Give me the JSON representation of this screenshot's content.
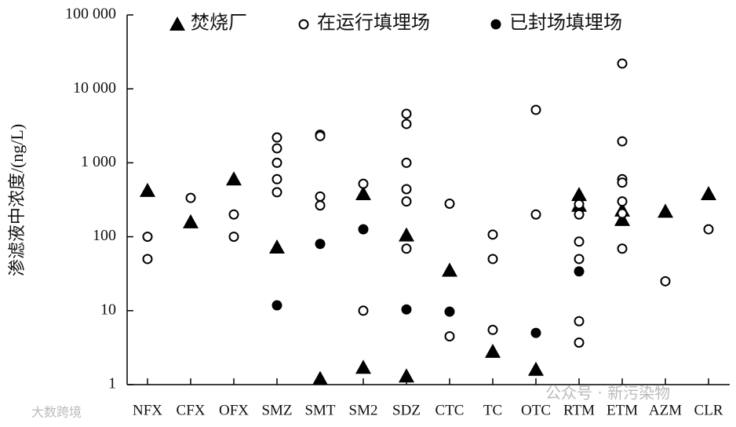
{
  "chart_data": {
    "type": "scatter",
    "y_label": "渗滤液中浓度/(ng/L)",
    "categories": [
      "NFX",
      "CFX",
      "OFX",
      "SMZ",
      "SMT",
      "SM2",
      "SDZ",
      "CTC",
      "TC",
      "OTC",
      "RTM",
      "ETM",
      "AZM",
      "CLR"
    ],
    "ylim": [
      1,
      100000
    ],
    "log_y": true,
    "yticks": [
      1,
      10,
      100,
      {
        "value": 1000,
        "label": "1 000"
      },
      {
        "value": 10000,
        "label": "10 000"
      },
      {
        "value": 100000,
        "label": "100 000"
      }
    ],
    "legend_position": "top",
    "series": [
      {
        "name": "焚烧厂",
        "marker": "triangle",
        "color": "#000000",
        "x": [
          "NFX",
          "CFX",
          "OFX",
          "SMZ",
          "SMT",
          "SM2",
          "SM2",
          "SDZ",
          "SDZ",
          "CTC",
          "TC",
          "OTC",
          "RTM",
          "RTM",
          "ETM",
          "ETM",
          "AZM",
          "CLR"
        ],
        "values": [
          420,
          158,
          600,
          72,
          1.2,
          380,
          1.7,
          105,
          1.3,
          35,
          2.8,
          1.6,
          370,
          265,
          228,
          170,
          220,
          380
        ]
      },
      {
        "name": "在运行填埋场",
        "marker": "open-circle",
        "color": "#000000",
        "x": [
          "NFX",
          "NFX",
          "CFX",
          "OFX",
          "OFX",
          "SMZ",
          "SMZ",
          "SMZ",
          "SMZ",
          "SMZ",
          "SMT",
          "SMT",
          "SMT",
          "SMT",
          "SM2",
          "SM2",
          "SDZ",
          "SDZ",
          "SDZ",
          "SDZ",
          "SDZ",
          "SDZ",
          "CTC",
          "CTC",
          "TC",
          "TC",
          "TC",
          "OTC",
          "OTC",
          "RTM",
          "RTM",
          "RTM",
          "RTM",
          "RTM",
          "RTM",
          "ETM",
          "ETM",
          "ETM",
          "ETM",
          "ETM",
          "ETM",
          "ETM",
          "AZM",
          "CLR"
        ],
        "values": [
          100,
          50,
          335,
          200,
          100,
          2200,
          1570,
          1000,
          600,
          400,
          2400,
          2300,
          350,
          265,
          520,
          10,
          4600,
          3350,
          1000,
          440,
          300,
          69,
          280,
          4.5,
          107,
          50,
          5.5,
          5200,
          200,
          275,
          200,
          86,
          50,
          7.2,
          3.7,
          22000,
          1950,
          600,
          540,
          300,
          206,
          69,
          25,
          126
        ]
      },
      {
        "name": "已封场填埋场",
        "marker": "filled-circle",
        "color": "#000000",
        "x": [
          "SMZ",
          "SMT",
          "SM2",
          "SDZ",
          "CTC",
          "OTC",
          "RTM"
        ],
        "values": [
          11.8,
          80,
          126,
          10.4,
          9.7,
          5,
          34
        ]
      }
    ],
    "watermarks": [
      "公众号 · 新污染物",
      "大数跨境"
    ]
  }
}
